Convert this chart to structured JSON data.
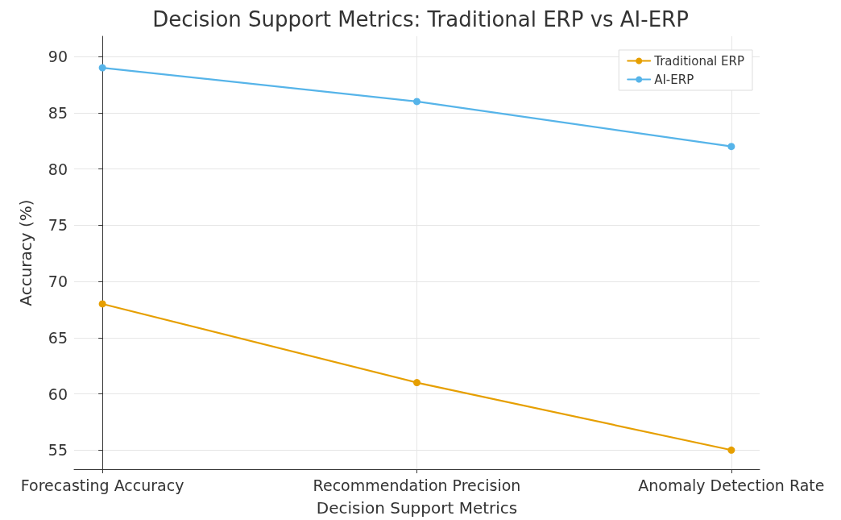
{
  "chart_data": {
    "type": "line",
    "title": "Decision Support Metrics: Traditional ERP vs AI-ERP",
    "xlabel": "Decision Support Metrics",
    "ylabel": "Accuracy (%)",
    "categories": [
      "Forecasting Accuracy",
      "Recommendation Precision",
      "Anomaly Detection Rate"
    ],
    "series": [
      {
        "name": "Traditional ERP",
        "color": "#e69f00",
        "values": [
          68,
          61,
          55
        ]
      },
      {
        "name": "AI-ERP",
        "color": "#56b4e9",
        "values": [
          89,
          86,
          82
        ]
      }
    ],
    "ylim": [
      53.3,
      91.8
    ],
    "yticks": [
      55,
      60,
      65,
      70,
      75,
      80,
      85,
      90
    ],
    "grid": true,
    "legend": "top right",
    "marker": "circle",
    "line_style": "solid"
  }
}
